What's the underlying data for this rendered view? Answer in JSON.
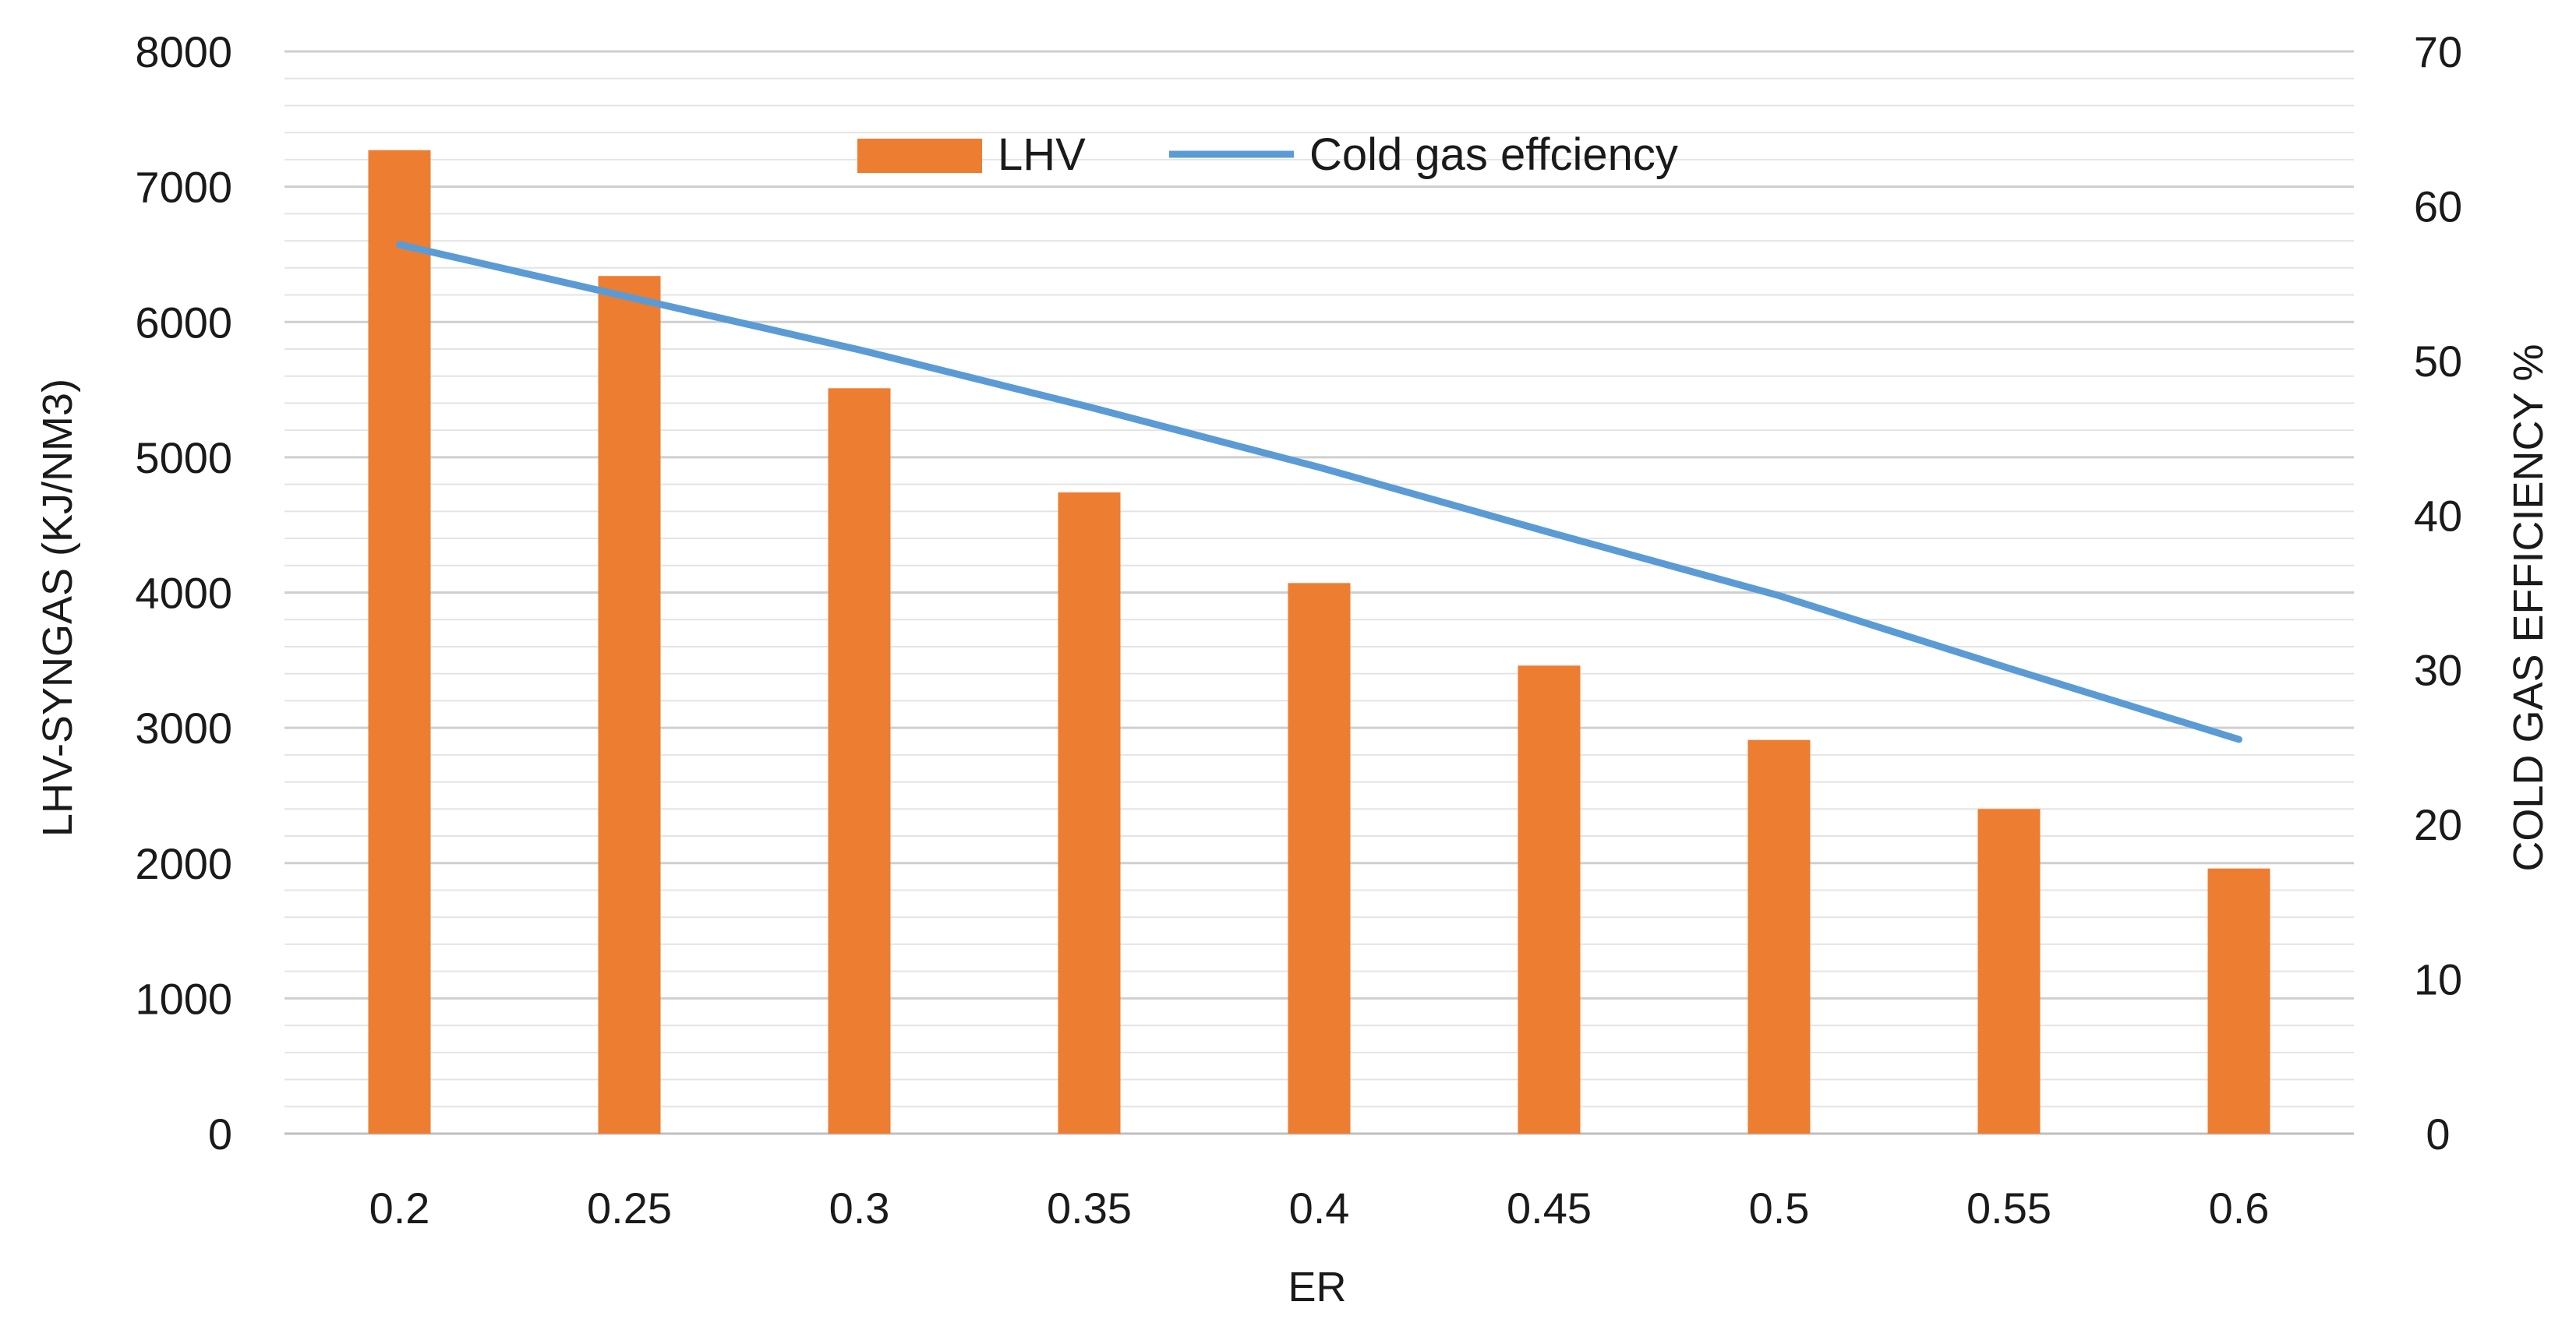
{
  "chart_data": {
    "type": "bar",
    "categories": [
      "0.2",
      "0.25",
      "0.3",
      "0.35",
      "0.4",
      "0.45",
      "0.5",
      "0.55",
      "0.6"
    ],
    "series": [
      {
        "name": "LHV",
        "type": "bar",
        "axis": "left",
        "color": "#ed7d31",
        "values": [
          7270,
          6340,
          5510,
          4740,
          4070,
          3460,
          2910,
          2400,
          1960
        ]
      },
      {
        "name": "Cold gas effciency",
        "type": "line",
        "axis": "right",
        "color": "#5b9bd5",
        "values": [
          57.5,
          54.1,
          50.7,
          47.0,
          43.1,
          38.9,
          34.8,
          30.1,
          25.5
        ]
      }
    ],
    "xlabel": "ER",
    "ylabel": "LHV-SYNGAS (KJ/NM3)",
    "y2label": "COLD GAS EFFICIENCY %",
    "ylim": [
      0,
      8000
    ],
    "y2lim": [
      0,
      70
    ],
    "yticks": [
      "0",
      "1000",
      "2000",
      "3000",
      "4000",
      "5000",
      "6000",
      "7000",
      "8000"
    ],
    "y2ticks": [
      "0",
      "10",
      "20",
      "30",
      "40",
      "50",
      "60",
      "70"
    ],
    "grid": true,
    "legend": "top-center"
  }
}
